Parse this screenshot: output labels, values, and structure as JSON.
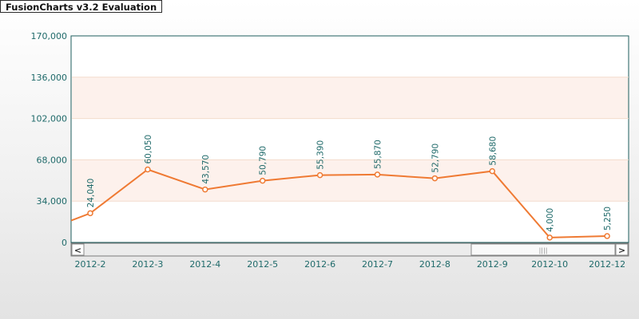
{
  "badge": {
    "text": "FusionCharts v3.2 Evaluation"
  },
  "colors": {
    "line": "#ef7a33",
    "band": "#fdf1ec",
    "axis_text": "#1f6a6a",
    "canvas_border": "#1d5d5d"
  },
  "scrollbar": {
    "left_arrow": "<",
    "right_arrow": ">",
    "grip": "||||"
  },
  "chart_data": {
    "type": "line",
    "title": "",
    "xlabel": "",
    "ylabel": "",
    "ylim": [
      0,
      170000
    ],
    "yticks": [
      0,
      34000,
      68000,
      102000,
      136000,
      170000
    ],
    "ytick_labels": [
      "0",
      "34,000",
      "68,000",
      "102,000",
      "136,000",
      "170,000"
    ],
    "categories": [
      "2012-2",
      "2012-3",
      "2012-4",
      "2012-5",
      "2012-6",
      "2012-7",
      "2012-8",
      "2012-9",
      "2012-10",
      "2012-12"
    ],
    "values": [
      24040,
      60050,
      43570,
      50790,
      55390,
      55870,
      52790,
      58680,
      4000,
      5250
    ],
    "value_labels": [
      "24,040",
      "60,050",
      "43,570",
      "50,790",
      "55,390",
      "55,870",
      "52,790",
      "58,680",
      "4,000",
      "5,250"
    ],
    "previous_value": 18000,
    "grid": true,
    "legend": "none"
  }
}
